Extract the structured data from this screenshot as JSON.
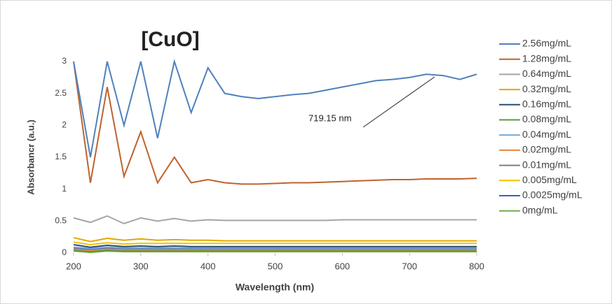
{
  "chart_data": {
    "type": "line",
    "title": "[CuO]",
    "x_label": "Wavelength (nm)",
    "y_label": "Absorbancr (a.u.)",
    "annotations": [
      {
        "text": "719.15 nm",
        "x": 719.15,
        "y": 2.8
      }
    ],
    "x": [
      200,
      225,
      250,
      275,
      300,
      325,
      350,
      375,
      400,
      425,
      450,
      475,
      500,
      525,
      550,
      575,
      600,
      625,
      650,
      675,
      700,
      725,
      750,
      775,
      800
    ],
    "series": [
      {
        "name": "2.56mg/mL",
        "color": "#4f81bd",
        "values": [
          3,
          1.5,
          3,
          2.0,
          3,
          1.8,
          3,
          2.2,
          2.9,
          2.5,
          2.45,
          2.42,
          2.45,
          2.48,
          2.5,
          2.55,
          2.6,
          2.65,
          2.7,
          2.72,
          2.75,
          2.8,
          2.78,
          2.72,
          2.8
        ]
      },
      {
        "name": "1.28mg/mL",
        "color": "#c0622d",
        "values": [
          3,
          1.1,
          2.6,
          1.2,
          1.9,
          1.1,
          1.5,
          1.1,
          1.15,
          1.1,
          1.08,
          1.08,
          1.09,
          1.1,
          1.1,
          1.11,
          1.12,
          1.13,
          1.14,
          1.15,
          1.15,
          1.16,
          1.16,
          1.16,
          1.17
        ]
      },
      {
        "name": "0.64mg/mL",
        "color": "#a5a5a5",
        "values": [
          0.55,
          0.48,
          0.58,
          0.46,
          0.55,
          0.5,
          0.54,
          0.5,
          0.52,
          0.51,
          0.51,
          0.51,
          0.51,
          0.51,
          0.51,
          0.51,
          0.52,
          0.52,
          0.52,
          0.52,
          0.52,
          0.52,
          0.52,
          0.52,
          0.52
        ]
      },
      {
        "name": "0.32mg/mL",
        "color": "#e0a800",
        "values": [
          0.24,
          0.18,
          0.23,
          0.2,
          0.22,
          0.2,
          0.21,
          0.2,
          0.2,
          0.19,
          0.19,
          0.19,
          0.19,
          0.19,
          0.19,
          0.19,
          0.19,
          0.19,
          0.19,
          0.19,
          0.19,
          0.19,
          0.19,
          0.19,
          0.19
        ]
      },
      {
        "name": "0.16mg/mL",
        "color": "#2c4d75",
        "values": [
          0.13,
          0.09,
          0.12,
          0.1,
          0.11,
          0.1,
          0.11,
          0.1,
          0.1,
          0.1,
          0.1,
          0.1,
          0.1,
          0.1,
          0.1,
          0.1,
          0.1,
          0.1,
          0.1,
          0.1,
          0.1,
          0.1,
          0.1,
          0.1,
          0.1
        ]
      },
      {
        "name": "0.08mg/mL",
        "color": "#5b9b3a",
        "values": [
          0.04,
          0.02,
          0.04,
          0.03,
          0.03,
          0.03,
          0.03,
          0.03,
          0.03,
          0.03,
          0.03,
          0.03,
          0.03,
          0.03,
          0.03,
          0.03,
          0.03,
          0.03,
          0.03,
          0.03,
          0.03,
          0.03,
          0.03,
          0.03,
          0.03
        ]
      },
      {
        "name": "0.04mg/mL",
        "color": "#6fa8dc",
        "values": [
          0.09,
          0.07,
          0.09,
          0.08,
          0.08,
          0.08,
          0.08,
          0.08,
          0.08,
          0.08,
          0.08,
          0.08,
          0.08,
          0.08,
          0.08,
          0.08,
          0.08,
          0.08,
          0.08,
          0.08,
          0.08,
          0.08,
          0.08,
          0.08,
          0.08
        ]
      },
      {
        "name": "0.02mg/mL",
        "color": "#e8853d",
        "values": [
          0.06,
          0.04,
          0.06,
          0.05,
          0.05,
          0.05,
          0.05,
          0.05,
          0.05,
          0.05,
          0.05,
          0.05,
          0.05,
          0.05,
          0.05,
          0.05,
          0.05,
          0.05,
          0.05,
          0.05,
          0.05,
          0.05,
          0.05,
          0.05,
          0.05
        ]
      },
      {
        "name": "0.01mg/mL",
        "color": "#7f7f7f",
        "values": [
          0.05,
          0.03,
          0.05,
          0.04,
          0.04,
          0.04,
          0.04,
          0.04,
          0.04,
          0.04,
          0.04,
          0.04,
          0.04,
          0.04,
          0.04,
          0.04,
          0.04,
          0.04,
          0.04,
          0.04,
          0.04,
          0.04,
          0.04,
          0.04,
          0.04
        ]
      },
      {
        "name": "0.005mg/mL",
        "color": "#f2c200",
        "values": [
          0.17,
          0.13,
          0.16,
          0.14,
          0.15,
          0.15,
          0.15,
          0.15,
          0.15,
          0.15,
          0.15,
          0.15,
          0.15,
          0.15,
          0.15,
          0.15,
          0.15,
          0.15,
          0.15,
          0.15,
          0.15,
          0.15,
          0.15,
          0.15,
          0.15
        ]
      },
      {
        "name": "0.0025mg/mL",
        "color": "#3a5fcd",
        "values": [
          0.08,
          0.06,
          0.08,
          0.07,
          0.07,
          0.07,
          0.07,
          0.07,
          0.07,
          0.07,
          0.07,
          0.07,
          0.07,
          0.07,
          0.07,
          0.07,
          0.07,
          0.07,
          0.07,
          0.07,
          0.07,
          0.07,
          0.07,
          0.07,
          0.07
        ]
      },
      {
        "name": "0mg/mL",
        "color": "#70ad47",
        "values": [
          0.03,
          0.01,
          0.03,
          0.02,
          0.02,
          0.02,
          0.02,
          0.02,
          0.02,
          0.02,
          0.02,
          0.02,
          0.02,
          0.02,
          0.02,
          0.02,
          0.02,
          0.02,
          0.02,
          0.02,
          0.02,
          0.02,
          0.02,
          0.02,
          0.02
        ]
      }
    ],
    "xlim": [
      200,
      800
    ],
    "xticks": [
      200,
      300,
      400,
      500,
      600,
      700,
      800
    ],
    "ylim": [
      0,
      3
    ],
    "yticks": [
      0,
      0.5,
      1,
      1.5,
      2,
      2.5,
      3
    ],
    "grid": false,
    "legend": "right"
  }
}
